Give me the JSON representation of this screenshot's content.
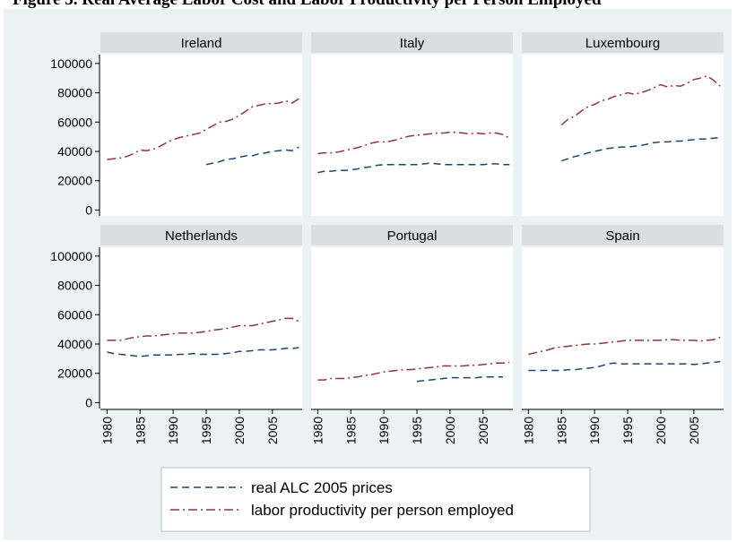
{
  "top_text": "Figure 3. Real Average Labor Cost and Labor Productivity per Person Employed",
  "colors": {
    "background": "#eaf2f3",
    "panel": "#ffffff",
    "strip": "#d9dedf",
    "alc": "#1a476f",
    "productivity": "#90353b"
  },
  "chart_data": {
    "type": "line",
    "layout": "small multiples, 2 rows x 3 columns, shared axes",
    "x_ticks": [
      "1980",
      "1985",
      "1990",
      "1995",
      "2000",
      "2005"
    ],
    "y_ticks": [
      "0",
      "20000",
      "40000",
      "60000",
      "80000",
      "100000"
    ],
    "xlim": [
      1979,
      2009.5
    ],
    "ylim": [
      -4000,
      106000
    ],
    "grid": false,
    "legend_position": "bottom",
    "legend": [
      {
        "label": "real ALC 2005 prices",
        "style": "dashed"
      },
      {
        "label": "labor productivity per person employed",
        "style": "dash-dot"
      }
    ],
    "panels": [
      {
        "title": "Ireland",
        "series": [
          {
            "name": "real ALC 2005 prices",
            "x": [
              1995,
              1996,
              1997,
              1998,
              1999,
              2000,
              2001,
              2002,
              2003,
              2004,
              2005,
              2006,
              2007,
              2008,
              2009
            ],
            "values": [
              31000,
              32000,
              33000,
              34500,
              35000,
              36000,
              37000,
              37000,
              38500,
              39000,
              40000,
              40500,
              41000,
              40500,
              43000
            ]
          },
          {
            "name": "labor productivity per person employed",
            "x": [
              1980,
              1981,
              1982,
              1983,
              1984,
              1985,
              1986,
              1987,
              1988,
              1989,
              1990,
              1991,
              1992,
              1993,
              1994,
              1995,
              1996,
              1997,
              1998,
              1999,
              2000,
              2001,
              2002,
              2003,
              2004,
              2005,
              2006,
              2007,
              2008,
              2009
            ],
            "values": [
              34500,
              35000,
              35500,
              36500,
              38500,
              41000,
              40500,
              41500,
              43500,
              46000,
              48000,
              49500,
              50500,
              51500,
              52500,
              55000,
              57500,
              60000,
              60500,
              62000,
              64500,
              67500,
              70500,
              71500,
              72500,
              72500,
              73000,
              74500,
              73000,
              76000
            ]
          }
        ]
      },
      {
        "title": "Italy",
        "series": [
          {
            "name": "real ALC 2005 prices",
            "x": [
              1980,
              1981,
              1982,
              1983,
              1984,
              1985,
              1986,
              1987,
              1988,
              1989,
              1990,
              1991,
              1992,
              1993,
              1994,
              1995,
              1996,
              1997,
              1998,
              1999,
              2000,
              2001,
              2002,
              2003,
              2004,
              2005,
              2006,
              2007,
              2008,
              2009
            ],
            "values": [
              25500,
              26500,
              26500,
              27000,
              27000,
              27500,
              28000,
              29000,
              29500,
              30500,
              31000,
              31000,
              31000,
              31000,
              31000,
              31000,
              31500,
              32000,
              31500,
              31000,
              31000,
              31000,
              31000,
              31000,
              31000,
              31000,
              31500,
              31500,
              31000,
              31000
            ]
          },
          {
            "name": "labor productivity per person employed",
            "x": [
              1980,
              1981,
              1982,
              1983,
              1984,
              1985,
              1986,
              1987,
              1988,
              1989,
              1990,
              1991,
              1992,
              1993,
              1994,
              1995,
              1996,
              1997,
              1998,
              1999,
              2000,
              2001,
              2002,
              2003,
              2004,
              2005,
              2006,
              2007,
              2008,
              2009
            ],
            "values": [
              38500,
              39000,
              39000,
              39500,
              40500,
              41500,
              42500,
              44000,
              45500,
              46500,
              46500,
              47000,
              48000,
              49500,
              50500,
              51000,
              51500,
              52000,
              52500,
              52500,
              53000,
              53000,
              52500,
              52000,
              52500,
              52000,
              52500,
              52500,
              51500,
              49000
            ]
          }
        ]
      },
      {
        "title": "Luxembourg",
        "series": [
          {
            "name": "real ALC 2005 prices",
            "x": [
              1985,
              1986,
              1987,
              1988,
              1989,
              1990,
              1991,
              1992,
              1993,
              1994,
              1995,
              1996,
              1997,
              1998,
              1999,
              2000,
              2001,
              2002,
              2003,
              2004,
              2005,
              2006,
              2007,
              2008,
              2009
            ],
            "values": [
              33500,
              35000,
              36500,
              37500,
              39000,
              40000,
              41000,
              42000,
              42500,
              43000,
              43000,
              43500,
              44000,
              45000,
              46000,
              46500,
              46500,
              47000,
              47000,
              47500,
              48000,
              48500,
              48500,
              49000,
              49500
            ]
          },
          {
            "name": "labor productivity per person employed",
            "x": [
              1985,
              1986,
              1987,
              1988,
              1989,
              1990,
              1991,
              1992,
              1993,
              1994,
              1995,
              1996,
              1997,
              1998,
              1999,
              2000,
              2001,
              2002,
              2003,
              2004,
              2005,
              2006,
              2007,
              2008,
              2009
            ],
            "values": [
              58000,
              62000,
              64000,
              67500,
              70500,
              72000,
              74500,
              75500,
              77500,
              78500,
              80000,
              79000,
              80000,
              81500,
              83500,
              85500,
              84000,
              85000,
              84500,
              86500,
              89000,
              90000,
              91500,
              88500,
              84500
            ]
          }
        ]
      },
      {
        "title": "Netherlands",
        "series": [
          {
            "name": "real ALC 2005 prices",
            "x": [
              1980,
              1981,
              1982,
              1983,
              1984,
              1985,
              1986,
              1987,
              1988,
              1989,
              1990,
              1991,
              1992,
              1993,
              1994,
              1995,
              1996,
              1997,
              1998,
              1999,
              2000,
              2001,
              2002,
              2003,
              2004,
              2005,
              2006,
              2007,
              2008,
              2009
            ],
            "values": [
              34500,
              33500,
              33000,
              32500,
              32000,
              31500,
              32000,
              32500,
              32500,
              32500,
              32500,
              33000,
              33000,
              33500,
              33000,
              33000,
              33000,
              33000,
              33500,
              34000,
              35000,
              35000,
              35500,
              36000,
              36000,
              36000,
              36500,
              37000,
              37000,
              37500
            ]
          },
          {
            "name": "labor productivity per person employed",
            "x": [
              1980,
              1981,
              1982,
              1983,
              1984,
              1985,
              1986,
              1987,
              1988,
              1989,
              1990,
              1991,
              1992,
              1993,
              1994,
              1995,
              1996,
              1997,
              1998,
              1999,
              2000,
              2001,
              2002,
              2003,
              2004,
              2005,
              2006,
              2007,
              2008,
              2009
            ],
            "values": [
              42500,
              42500,
              42500,
              43500,
              44500,
              45000,
              45500,
              45500,
              46000,
              46500,
              47000,
              47500,
              47500,
              47500,
              48000,
              48500,
              49500,
              50000,
              50500,
              51500,
              52500,
              52500,
              52500,
              53500,
              54500,
              55500,
              56500,
              57500,
              57500,
              55500
            ]
          }
        ]
      },
      {
        "title": "Portugal",
        "series": [
          {
            "name": "real ALC 2005 prices",
            "x": [
              1995,
              1996,
              1997,
              1998,
              1999,
              2000,
              2001,
              2002,
              2003,
              2004,
              2005,
              2006,
              2007,
              2008
            ],
            "values": [
              14500,
              15000,
              15500,
              16000,
              16500,
              17000,
              17000,
              17000,
              17000,
              17000,
              17500,
              17500,
              17500,
              17500
            ]
          },
          {
            "name": "labor productivity per person employed",
            "x": [
              1980,
              1981,
              1982,
              1983,
              1984,
              1985,
              1986,
              1987,
              1988,
              1989,
              1990,
              1991,
              1992,
              1993,
              1994,
              1995,
              1996,
              1997,
              1998,
              1999,
              2000,
              2001,
              2002,
              2003,
              2004,
              2005,
              2006,
              2007,
              2008,
              2009
            ],
            "values": [
              15500,
              15500,
              16500,
              16500,
              16500,
              17000,
              17500,
              18500,
              19000,
              20000,
              21000,
              21500,
              22000,
              22500,
              22500,
              23000,
              23500,
              24000,
              24500,
              25000,
              25000,
              25000,
              25000,
              25500,
              25500,
              26000,
              26500,
              27000,
              27000,
              27500
            ]
          }
        ]
      },
      {
        "title": "Spain",
        "series": [
          {
            "name": "real ALC 2005 prices",
            "x": [
              1980,
              1981,
              1982,
              1983,
              1984,
              1985,
              1986,
              1987,
              1988,
              1989,
              1990,
              1991,
              1992,
              1993,
              1994,
              1995,
              1996,
              1997,
              1998,
              1999,
              2000,
              2001,
              2002,
              2003,
              2004,
              2005,
              2006,
              2007,
              2008,
              2009
            ],
            "values": [
              22000,
              22000,
              22000,
              22000,
              22000,
              22000,
              22500,
              22500,
              23000,
              23500,
              24000,
              25000,
              26500,
              27000,
              26500,
              26500,
              26500,
              26500,
              26500,
              26500,
              26500,
              26500,
              26500,
              26500,
              26500,
              26000,
              26500,
              27000,
              27500,
              28000
            ]
          },
          {
            "name": "labor productivity per person employed",
            "x": [
              1980,
              1981,
              1982,
              1983,
              1984,
              1985,
              1986,
              1987,
              1988,
              1989,
              1990,
              1991,
              1992,
              1993,
              1994,
              1995,
              1996,
              1997,
              1998,
              1999,
              2000,
              2001,
              2002,
              2003,
              2004,
              2005,
              2006,
              2007,
              2008,
              2009
            ],
            "values": [
              33000,
              34000,
              35000,
              36000,
              37500,
              38000,
              38500,
              39000,
              39500,
              40000,
              40000,
              40500,
              41000,
              41500,
              42000,
              42500,
              42500,
              42500,
              42500,
              42500,
              42500,
              43000,
              43000,
              42500,
              42500,
              42500,
              42000,
              42500,
              43000,
              44500
            ]
          }
        ]
      }
    ]
  }
}
